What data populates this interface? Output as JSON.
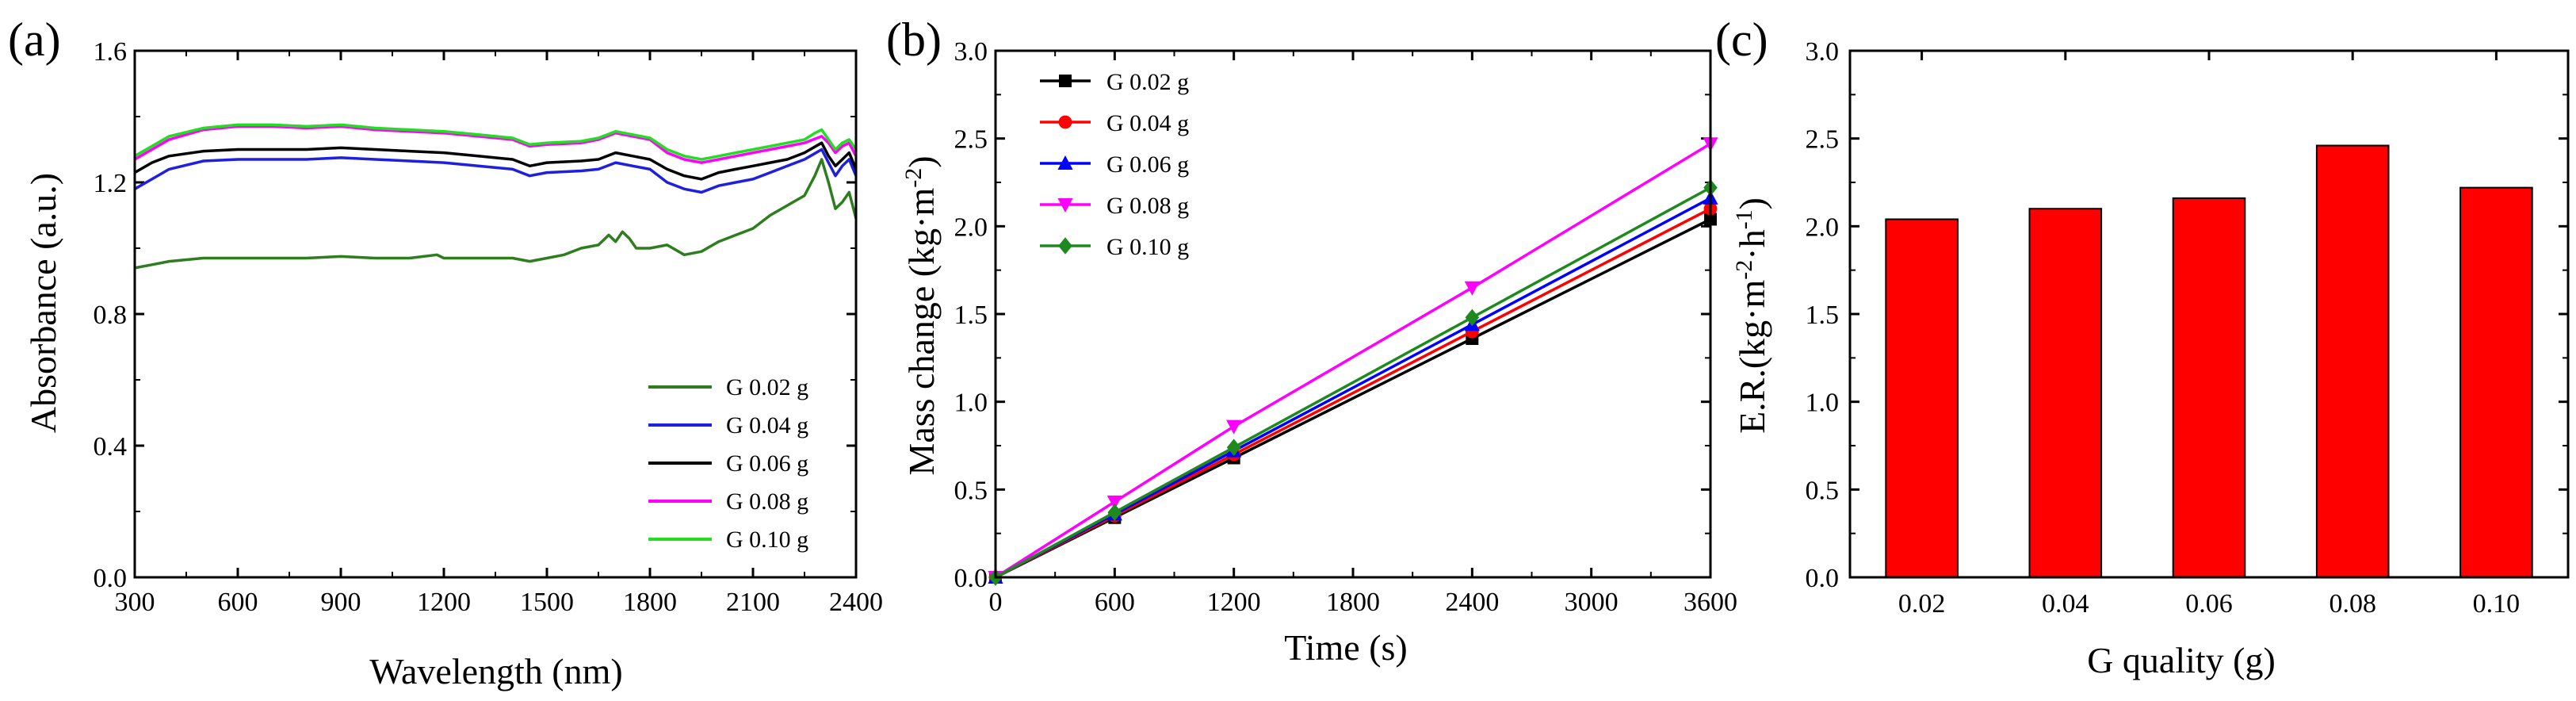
{
  "figure": {
    "panels": [
      "(a)",
      "(b)",
      "(c)"
    ]
  },
  "chart_data": [
    {
      "type": "line",
      "panel_label": "(a)",
      "title": "",
      "xlabel": "Wavelength (nm)",
      "ylabel": "Absorbance (a.u.)",
      "xlim": [
        300,
        2400
      ],
      "ylim": [
        0.0,
        1.6
      ],
      "xticks": [
        300,
        600,
        900,
        1200,
        1500,
        1800,
        2100,
        2400
      ],
      "yticks": [
        0.0,
        0.4,
        0.8,
        1.2,
        1.6
      ],
      "xtick_labels": [
        "300",
        "600",
        "900",
        "1200",
        "1500",
        "1800",
        "2100",
        "2400"
      ],
      "ytick_labels": [
        "0.0",
        "0.4",
        "0.8",
        "1.2",
        "1.6"
      ],
      "legend_position": "bottom-right",
      "series": [
        {
          "name": "G 0.02 g",
          "color": "#2e7d1f",
          "x": [
            300,
            350,
            400,
            500,
            600,
            700,
            800,
            900,
            1000,
            1100,
            1180,
            1200,
            1250,
            1300,
            1400,
            1450,
            1500,
            1550,
            1600,
            1650,
            1680,
            1700,
            1720,
            1740,
            1760,
            1800,
            1850,
            1900,
            1950,
            2000,
            2050,
            2100,
            2150,
            2200,
            2250,
            2280,
            2300,
            2320,
            2340,
            2360,
            2380,
            2400
          ],
          "y": [
            0.94,
            0.95,
            0.96,
            0.97,
            0.97,
            0.97,
            0.97,
            0.975,
            0.97,
            0.97,
            0.98,
            0.97,
            0.97,
            0.97,
            0.97,
            0.96,
            0.97,
            0.98,
            1.0,
            1.01,
            1.04,
            1.02,
            1.05,
            1.03,
            1.0,
            1.0,
            1.01,
            0.98,
            0.99,
            1.02,
            1.04,
            1.06,
            1.1,
            1.13,
            1.16,
            1.22,
            1.27,
            1.2,
            1.12,
            1.14,
            1.17,
            1.09
          ]
        },
        {
          "name": "G 0.04 g",
          "color": "#1f1fe0",
          "x": [
            300,
            350,
            400,
            500,
            600,
            700,
            800,
            900,
            1000,
            1100,
            1200,
            1300,
            1400,
            1450,
            1500,
            1600,
            1650,
            1700,
            1750,
            1800,
            1850,
            1900,
            1950,
            2000,
            2050,
            2100,
            2150,
            2200,
            2250,
            2300,
            2320,
            2340,
            2360,
            2380,
            2400
          ],
          "y": [
            1.18,
            1.21,
            1.24,
            1.265,
            1.27,
            1.27,
            1.27,
            1.275,
            1.27,
            1.265,
            1.26,
            1.25,
            1.24,
            1.22,
            1.23,
            1.235,
            1.24,
            1.26,
            1.25,
            1.24,
            1.2,
            1.18,
            1.17,
            1.19,
            1.2,
            1.21,
            1.23,
            1.25,
            1.27,
            1.3,
            1.26,
            1.22,
            1.25,
            1.27,
            1.22
          ]
        },
        {
          "name": "G 0.06 g",
          "color": "#000000",
          "x": [
            300,
            350,
            400,
            500,
            600,
            700,
            800,
            900,
            1000,
            1100,
            1200,
            1300,
            1400,
            1450,
            1500,
            1600,
            1650,
            1700,
            1750,
            1800,
            1850,
            1900,
            1950,
            2000,
            2050,
            2100,
            2150,
            2200,
            2250,
            2300,
            2320,
            2340,
            2360,
            2380,
            2400
          ],
          "y": [
            1.23,
            1.26,
            1.28,
            1.295,
            1.3,
            1.3,
            1.3,
            1.305,
            1.3,
            1.295,
            1.29,
            1.28,
            1.27,
            1.25,
            1.26,
            1.265,
            1.27,
            1.29,
            1.28,
            1.27,
            1.24,
            1.22,
            1.21,
            1.23,
            1.24,
            1.25,
            1.26,
            1.27,
            1.29,
            1.32,
            1.28,
            1.25,
            1.27,
            1.29,
            1.24
          ]
        },
        {
          "name": "G 0.08 g",
          "color": "#ff00ff",
          "x": [
            300,
            350,
            400,
            500,
            600,
            700,
            800,
            900,
            1000,
            1100,
            1200,
            1300,
            1400,
            1450,
            1500,
            1600,
            1650,
            1700,
            1750,
            1800,
            1850,
            1900,
            1950,
            2000,
            2050,
            2100,
            2150,
            2200,
            2250,
            2300,
            2320,
            2340,
            2360,
            2380,
            2400
          ],
          "y": [
            1.27,
            1.3,
            1.33,
            1.36,
            1.37,
            1.37,
            1.365,
            1.37,
            1.36,
            1.355,
            1.35,
            1.34,
            1.33,
            1.31,
            1.315,
            1.32,
            1.33,
            1.35,
            1.34,
            1.33,
            1.29,
            1.27,
            1.26,
            1.27,
            1.28,
            1.29,
            1.3,
            1.31,
            1.32,
            1.34,
            1.32,
            1.29,
            1.31,
            1.32,
            1.28
          ]
        },
        {
          "name": "G 0.10 g",
          "color": "#22dd22",
          "x": [
            300,
            350,
            400,
            500,
            600,
            700,
            800,
            900,
            1000,
            1100,
            1200,
            1300,
            1400,
            1450,
            1500,
            1600,
            1650,
            1700,
            1750,
            1800,
            1850,
            1900,
            1950,
            2000,
            2050,
            2100,
            2150,
            2200,
            2250,
            2280,
            2300,
            2320,
            2340,
            2360,
            2380,
            2400
          ],
          "y": [
            1.28,
            1.31,
            1.34,
            1.365,
            1.375,
            1.375,
            1.37,
            1.375,
            1.365,
            1.36,
            1.355,
            1.345,
            1.335,
            1.315,
            1.32,
            1.325,
            1.335,
            1.355,
            1.345,
            1.335,
            1.3,
            1.28,
            1.27,
            1.28,
            1.29,
            1.3,
            1.31,
            1.32,
            1.33,
            1.35,
            1.36,
            1.33,
            1.3,
            1.32,
            1.33,
            1.3
          ]
        }
      ]
    },
    {
      "type": "line",
      "panel_label": "(b)",
      "title": "",
      "xlabel": "Time (s)",
      "ylabel_main": "Mass change (kg·m",
      "ylabel_sup": "-2",
      "ylabel_end": ")",
      "xlim": [
        0,
        3600
      ],
      "ylim": [
        0.0,
        3.0
      ],
      "xticks": [
        0,
        600,
        1200,
        1800,
        2400,
        3000,
        3600
      ],
      "yticks": [
        0.0,
        0.5,
        1.0,
        1.5,
        2.0,
        2.5,
        3.0
      ],
      "xtick_labels": [
        "0",
        "600",
        "1200",
        "1800",
        "2400",
        "3000",
        "3600"
      ],
      "ytick_labels": [
        "0.0",
        "0.5",
        "1.0",
        "1.5",
        "2.0",
        "2.5",
        "3.0"
      ],
      "legend_position": "top-left",
      "x": [
        0,
        600,
        1200,
        2400,
        3600
      ],
      "series": [
        {
          "name": "G 0.02 g",
          "color": "#000000",
          "marker": "square",
          "values": [
            0,
            0.34,
            0.68,
            1.36,
            2.04
          ]
        },
        {
          "name": "G 0.04 g",
          "color": "#ff0000",
          "marker": "circle",
          "values": [
            0,
            0.35,
            0.7,
            1.4,
            2.1
          ]
        },
        {
          "name": "G 0.06 g",
          "color": "#0000ff",
          "marker": "triangle-up",
          "values": [
            0,
            0.36,
            0.72,
            1.44,
            2.16
          ]
        },
        {
          "name": "G 0.08 g",
          "color": "#ff00ff",
          "marker": "triangle-down",
          "values": [
            0,
            0.43,
            0.86,
            1.65,
            2.47
          ]
        },
        {
          "name": "G 0.10 g",
          "color": "#1e8a1e",
          "marker": "diamond",
          "values": [
            0,
            0.37,
            0.74,
            1.48,
            2.22
          ]
        }
      ]
    },
    {
      "type": "bar",
      "panel_label": "(c)",
      "title": "",
      "xlabel": "G quality (g)",
      "ylabel_parts": [
        "E.R.(kg·m",
        "-2",
        "·h",
        "-1",
        ")"
      ],
      "categories": [
        "0.02",
        "0.04",
        "0.06",
        "0.08",
        "0.10"
      ],
      "values": [
        2.04,
        2.1,
        2.16,
        2.46,
        2.22
      ],
      "ylim": [
        0.0,
        3.0
      ],
      "yticks": [
        0.0,
        0.5,
        1.0,
        1.5,
        2.0,
        2.5,
        3.0
      ],
      "ytick_labels": [
        "0.0",
        "0.5",
        "1.0",
        "1.5",
        "2.0",
        "2.5",
        "3.0"
      ],
      "bar_color": "#ff0000"
    }
  ]
}
